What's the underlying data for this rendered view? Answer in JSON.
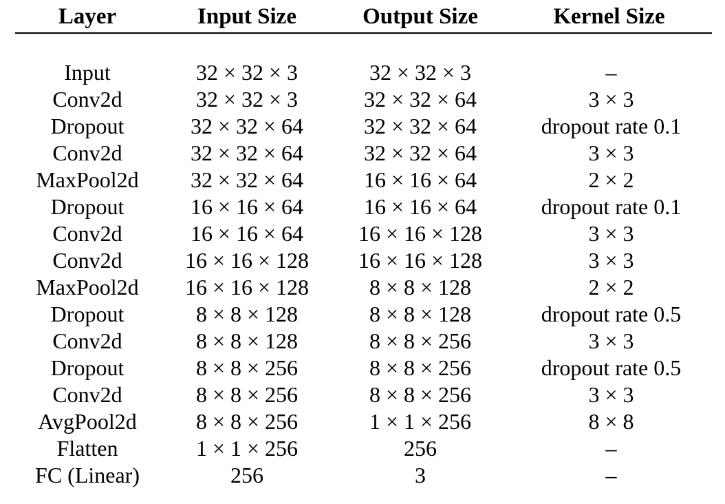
{
  "table": {
    "headers": [
      "Layer",
      "Input Size",
      "Output Size",
      "Kernel Size"
    ],
    "rows": [
      {
        "layer": "Input",
        "input": "32 × 32 × 3",
        "output": "32 × 32 × 3",
        "kernel": "–"
      },
      {
        "layer": "Conv2d",
        "input": "32 × 32 × 3",
        "output": "32 × 32 × 64",
        "kernel": "3 × 3"
      },
      {
        "layer": "Dropout",
        "input": "32 × 32 × 64",
        "output": "32 × 32 × 64",
        "kernel": "dropout  rate  0.1"
      },
      {
        "layer": "Conv2d",
        "input": "32 × 32 × 64",
        "output": "32 × 32 × 64",
        "kernel": "3 × 3"
      },
      {
        "layer": "MaxPool2d",
        "input": "32 × 32 × 64",
        "output": "16 × 16 × 64",
        "kernel": "2 × 2"
      },
      {
        "layer": "Dropout",
        "input": "16 × 16 × 64",
        "output": "16 × 16 × 64",
        "kernel": "dropout  rate  0.1"
      },
      {
        "layer": "Conv2d",
        "input": "16 × 16 × 64",
        "output": "16 × 16 × 128",
        "kernel": "3 × 3"
      },
      {
        "layer": "Conv2d",
        "input": "16 × 16 × 128",
        "output": "16 × 16 × 128",
        "kernel": "3 × 3"
      },
      {
        "layer": "MaxPool2d",
        "input": "16 × 16 × 128",
        "output": "8 × 8 × 128",
        "kernel": "2 × 2"
      },
      {
        "layer": "Dropout",
        "input": "8 × 8 × 128",
        "output": "8 × 8 × 128",
        "kernel": "dropout  rate  0.5"
      },
      {
        "layer": "Conv2d",
        "input": "8 × 8 × 128",
        "output": "8 × 8 × 256",
        "kernel": "3 × 3"
      },
      {
        "layer": "Dropout",
        "input": "8 × 8 × 256",
        "output": "8 × 8 × 256",
        "kernel": "dropout  rate  0.5"
      },
      {
        "layer": "Conv2d",
        "input": "8 × 8 × 256",
        "output": "8 × 8 × 256",
        "kernel": "3 × 3"
      },
      {
        "layer": "AvgPool2d",
        "input": "8 × 8 × 256",
        "output": "1 × 1 × 256",
        "kernel": "8 × 8"
      },
      {
        "layer": "Flatten",
        "input": "1 × 1 × 256",
        "output": "256",
        "kernel": "–"
      },
      {
        "layer": "FC (Linear)",
        "input": "256",
        "output": "3",
        "kernel": "–"
      }
    ]
  }
}
